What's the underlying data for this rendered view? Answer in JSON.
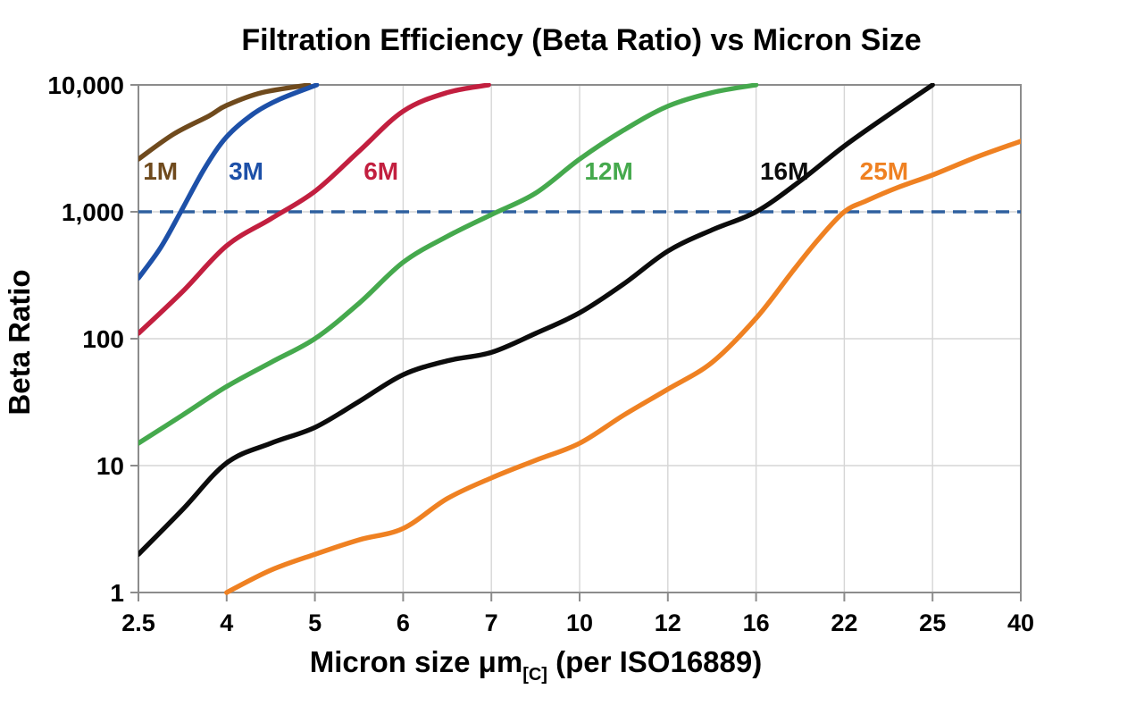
{
  "title": "Filtration Efficiency (Beta Ratio) vs Micron Size",
  "colors": {
    "background": "#ffffff",
    "grid": "#d6d6d6",
    "axis": "#8c8c8c",
    "text": "#000000",
    "reference": "#2f609f"
  },
  "chart_data": {
    "type": "line",
    "title": "Filtration Efficiency (Beta Ratio) vs Micron Size",
    "x_axis": {
      "title_main": "Micron size μm",
      "title_sub": "[C]",
      "title_suffix": " (per ISO16889)",
      "categories": [
        "2.5",
        "4",
        "5",
        "6",
        "7",
        "10",
        "12",
        "16",
        "22",
        "25",
        "40"
      ]
    },
    "y_axis": {
      "title": "Beta Ratio",
      "scale": "log",
      "min": 1,
      "max": 10000,
      "ticks": [
        {
          "v": 10000,
          "label": "10,000"
        },
        {
          "v": 1000,
          "label": "1,000"
        },
        {
          "v": 100,
          "label": "100"
        },
        {
          "v": 10,
          "label": "10"
        },
        {
          "v": 1,
          "label": "1"
        }
      ]
    },
    "grid": true,
    "legend_position": "inline-labels",
    "reference_line": {
      "value": 1000,
      "style": "dashed",
      "color": "#2f609f"
    },
    "series": [
      {
        "name": "1M",
        "color": "#6f4a1d",
        "label": {
          "x_index": 0.25,
          "beta": 2100
        },
        "points": [
          [
            0,
            2600
          ],
          [
            0.4,
            4100
          ],
          [
            0.8,
            5700
          ],
          [
            1.0,
            6900
          ],
          [
            1.4,
            8700
          ],
          [
            1.93,
            10000
          ]
        ]
      },
      {
        "name": "3M",
        "color": "#1d50a8",
        "label": {
          "x_index": 1.22,
          "beta": 2100
        },
        "points": [
          [
            0,
            300
          ],
          [
            0.25,
            520
          ],
          [
            0.48,
            1000
          ],
          [
            0.75,
            2200
          ],
          [
            1.0,
            3900
          ],
          [
            1.3,
            5900
          ],
          [
            1.6,
            7700
          ],
          [
            2.02,
            10000
          ]
        ]
      },
      {
        "name": "6M",
        "color": "#c21f3f",
        "label": {
          "x_index": 2.75,
          "beta": 2100
        },
        "points": [
          [
            0,
            110
          ],
          [
            0.5,
            235
          ],
          [
            1.0,
            540
          ],
          [
            1.5,
            880
          ],
          [
            2.0,
            1450
          ],
          [
            2.5,
            3000
          ],
          [
            3.0,
            6200
          ],
          [
            3.5,
            8700
          ],
          [
            3.97,
            10000
          ]
        ]
      },
      {
        "name": "12M",
        "color": "#45a94d",
        "label": {
          "x_index": 5.33,
          "beta": 2100
        },
        "points": [
          [
            0,
            15
          ],
          [
            0.5,
            25
          ],
          [
            1,
            42
          ],
          [
            1.5,
            65
          ],
          [
            2,
            100
          ],
          [
            2.5,
            190
          ],
          [
            3,
            400
          ],
          [
            3.5,
            640
          ],
          [
            4,
            950
          ],
          [
            4.5,
            1400
          ],
          [
            5,
            2600
          ],
          [
            5.5,
            4400
          ],
          [
            6,
            6800
          ],
          [
            6.5,
            8700
          ],
          [
            7,
            10000
          ]
        ]
      },
      {
        "name": "16M",
        "color": "#0c0c0c",
        "label": {
          "x_index": 7.32,
          "beta": 2100
        },
        "points": [
          [
            0,
            2
          ],
          [
            0.5,
            4.5
          ],
          [
            1,
            10.5
          ],
          [
            1.5,
            15
          ],
          [
            2,
            20
          ],
          [
            2.5,
            32
          ],
          [
            3,
            52
          ],
          [
            3.5,
            67
          ],
          [
            4,
            78
          ],
          [
            4.5,
            110
          ],
          [
            5,
            160
          ],
          [
            5.5,
            270
          ],
          [
            6,
            490
          ],
          [
            6.5,
            720
          ],
          [
            7,
            1000
          ],
          [
            7.5,
            1750
          ],
          [
            8,
            3300
          ],
          [
            8.5,
            5800
          ],
          [
            9,
            10000
          ]
        ]
      },
      {
        "name": "25M",
        "color": "#ef8122",
        "label": {
          "x_index": 8.45,
          "beta": 2100
        },
        "points": [
          [
            1,
            1
          ],
          [
            1.5,
            1.5
          ],
          [
            2,
            2
          ],
          [
            2.5,
            2.6
          ],
          [
            3,
            3.2
          ],
          [
            3.5,
            5.5
          ],
          [
            4,
            8
          ],
          [
            4.5,
            11
          ],
          [
            5,
            15
          ],
          [
            5.5,
            25
          ],
          [
            6,
            40
          ],
          [
            6.5,
            65
          ],
          [
            7,
            145
          ],
          [
            7.4,
            330
          ],
          [
            7.7,
            600
          ],
          [
            8,
            1000
          ],
          [
            8.25,
            1220
          ],
          [
            8.6,
            1550
          ],
          [
            9,
            1950
          ],
          [
            9.5,
            2700
          ],
          [
            10,
            3600
          ]
        ]
      }
    ]
  }
}
